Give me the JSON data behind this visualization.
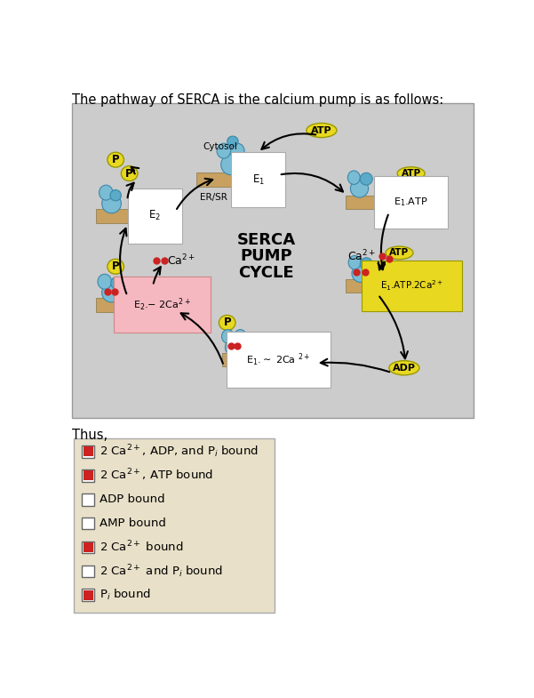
{
  "title_text": "The pathway of SERCA is the calcium pump is as follows:",
  "title_fontsize": 10.5,
  "diagram_bg": "#cccccc",
  "tan_color": "#c8a060",
  "yellow_color": "#e8d820",
  "blue_light": "#7bbcd5",
  "blue_mid": "#5aaac8",
  "blue_dark": "#3a88aa",
  "red_dot": "#cc2222",
  "pink_box": "#f5b8c0",
  "white_box": "#ffffff",
  "center_text": [
    "SERCA",
    "PUMP",
    "CYCLE"
  ],
  "legend_bg": "#e8e0c8",
  "legend_border": "#aaaaaa",
  "legend_items": [
    {
      "filled": true,
      "label_parts": [
        [
          "2 Ca",
          "2+",
          "",
          ", ADP, and P",
          "i",
          " bound"
        ]
      ]
    },
    {
      "filled": true,
      "label_parts": [
        [
          "2 Ca",
          "2+",
          "",
          ", ATP bound",
          "",
          ""
        ]
      ]
    },
    {
      "filled": false,
      "label_parts": [
        [
          "ADP bound",
          "",
          "",
          "",
          "",
          ""
        ]
      ]
    },
    {
      "filled": false,
      "label_parts": [
        [
          "AMP bound",
          "",
          "",
          "",
          "",
          ""
        ]
      ]
    },
    {
      "filled": true,
      "label_parts": [
        [
          "2 Ca",
          "2+",
          "",
          " bound",
          "",
          ""
        ]
      ]
    },
    {
      "filled": false,
      "label_parts": [
        [
          "2 Ca",
          "2+",
          "",
          " and P",
          "i",
          " bound"
        ]
      ]
    },
    {
      "filled": true,
      "label_parts": [
        [
          "P",
          "i",
          " bound",
          "",
          "",
          ""
        ]
      ]
    }
  ],
  "thus_text": "Thus,"
}
